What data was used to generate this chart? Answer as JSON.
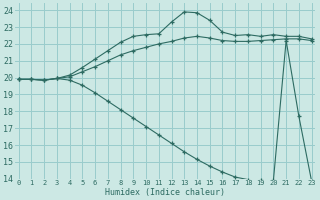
{
  "xlabel": "Humidex (Indice chaleur)",
  "bg_color": "#cce8e4",
  "grid_color": "#99cccc",
  "line_color": "#2d6b62",
  "xlim": [
    0,
    23
  ],
  "ylim": [
    14,
    24.4
  ],
  "x_ticks": [
    0,
    1,
    2,
    3,
    4,
    5,
    6,
    7,
    8,
    9,
    10,
    11,
    12,
    13,
    14,
    15,
    16,
    17,
    18,
    19,
    20,
    21,
    22,
    23
  ],
  "y_ticks": [
    14,
    15,
    16,
    17,
    18,
    19,
    20,
    21,
    22,
    23,
    24
  ],
  "series1_x": [
    0,
    1,
    2,
    3,
    4,
    5,
    6,
    7,
    8,
    9,
    10,
    11,
    12,
    13,
    14,
    15,
    16,
    17,
    18,
    19,
    20,
    21,
    22,
    23
  ],
  "series1_y": [
    19.9,
    19.9,
    19.85,
    19.95,
    20.05,
    20.35,
    20.65,
    21.0,
    21.35,
    21.6,
    21.8,
    22.0,
    22.15,
    22.35,
    22.45,
    22.35,
    22.2,
    22.15,
    22.15,
    22.2,
    22.25,
    22.3,
    22.3,
    22.2
  ],
  "series2_x": [
    0,
    1,
    2,
    3,
    4,
    5,
    6,
    7,
    8,
    9,
    10,
    11,
    12,
    13,
    14,
    15,
    16,
    17,
    18,
    19,
    20,
    21,
    22,
    23
  ],
  "series2_y": [
    19.9,
    19.9,
    19.85,
    19.95,
    20.15,
    20.6,
    21.1,
    21.6,
    22.1,
    22.45,
    22.55,
    22.6,
    23.3,
    23.9,
    23.85,
    23.4,
    22.7,
    22.5,
    22.55,
    22.45,
    22.55,
    22.45,
    22.45,
    22.3
  ],
  "series3_x": [
    0,
    1,
    2,
    3,
    4,
    5,
    6,
    7,
    8,
    9,
    10,
    11,
    12,
    13,
    14,
    15,
    16,
    17,
    18,
    19,
    20,
    21,
    22,
    23
  ],
  "series3_y": [
    19.9,
    19.9,
    19.85,
    19.95,
    19.85,
    19.55,
    19.1,
    18.6,
    18.1,
    17.6,
    17.1,
    16.6,
    16.1,
    15.6,
    15.15,
    14.75,
    14.4,
    14.1,
    13.95,
    13.9,
    13.9,
    22.2,
    17.7,
    13.85
  ]
}
